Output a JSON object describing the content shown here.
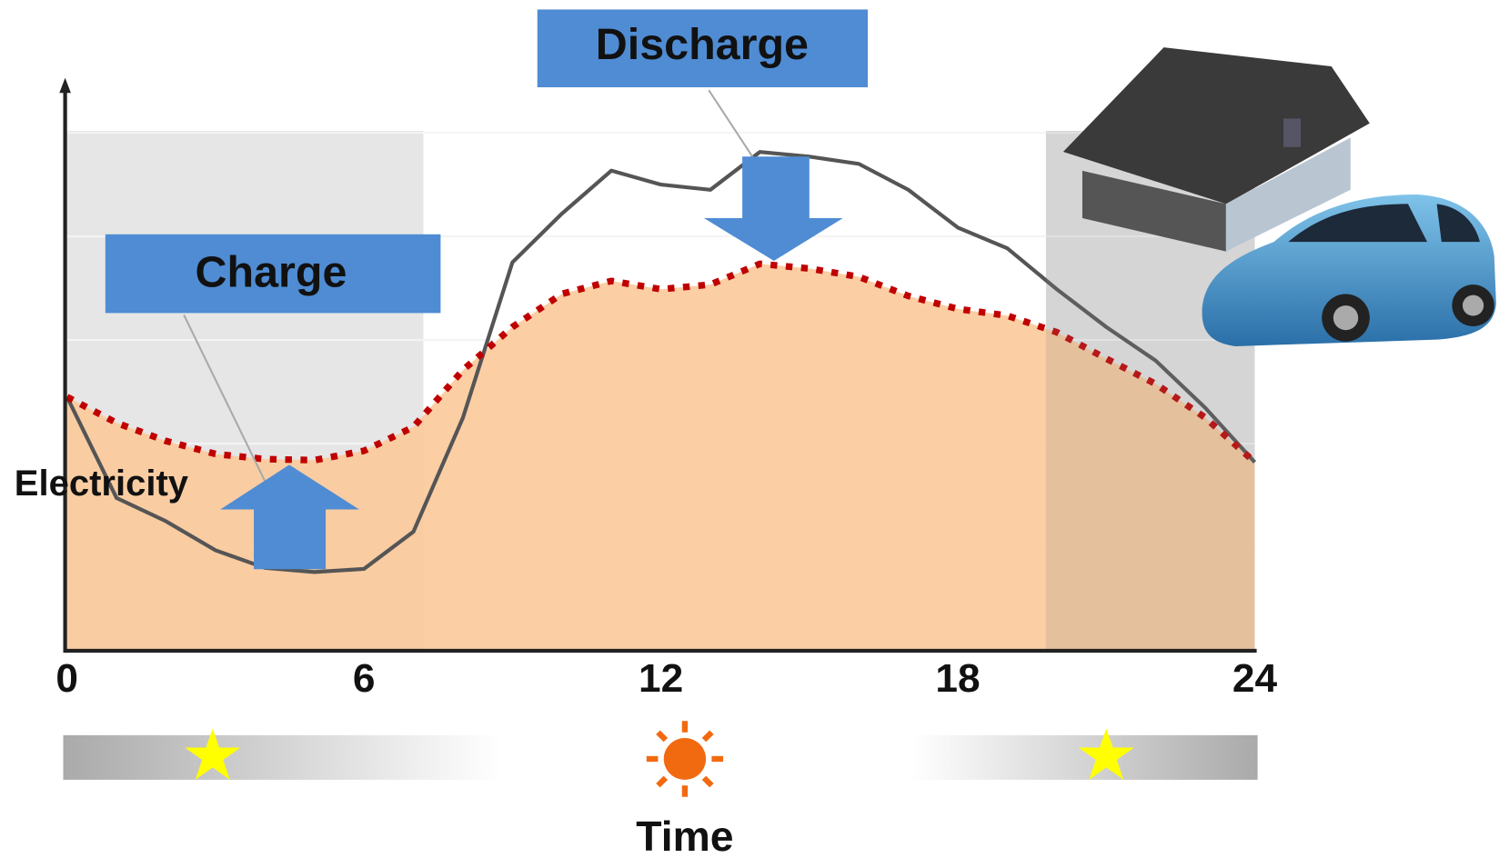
{
  "chart_data": {
    "type": "line",
    "x_label": "Time",
    "y_label": "Electricity",
    "annotations": [
      "Charge",
      "Discharge"
    ],
    "x": [
      0,
      1,
      2,
      3,
      4,
      5,
      6,
      7,
      8,
      9,
      10,
      11,
      12,
      13,
      14,
      15,
      16,
      17,
      18,
      19,
      20,
      21,
      22,
      23,
      24
    ],
    "xlim": [
      0,
      24
    ],
    "xticks": [
      0,
      6,
      12,
      18,
      24
    ],
    "ylim": [
      0,
      100
    ],
    "grid_lines": [
      20,
      40,
      60,
      80,
      100
    ],
    "series": [
      {
        "color": "#555555",
        "style": "solid",
        "values": [
          49,
          29.5,
          25,
          19.4,
          16,
          15.2,
          15.8,
          23,
          45,
          75,
          84.4,
          92.7,
          90,
          89,
          96.3,
          95.4,
          94,
          89,
          81.7,
          77.7,
          69.8,
          62.5,
          56,
          46.9,
          36.4
        ]
      },
      {
        "color": "#c00000",
        "style": "dotted",
        "fill": "#fbc99a",
        "values": [
          49,
          44,
          40.5,
          38,
          37,
          36.8,
          38.6,
          43.2,
          54.2,
          62.5,
          68.9,
          71.4,
          69.8,
          70.7,
          74.7,
          73.8,
          72.2,
          68.5,
          66,
          64.7,
          61.5,
          56.4,
          51.5,
          45,
          36.4
        ]
      }
    ]
  }
}
